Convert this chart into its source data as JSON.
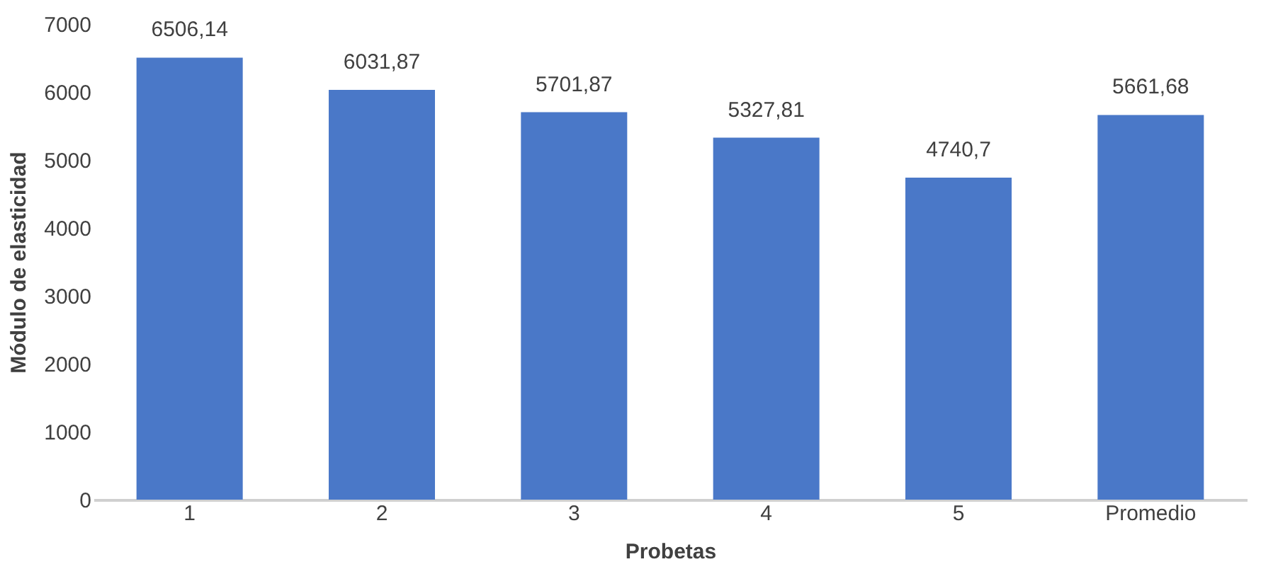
{
  "chart_data": {
    "type": "bar",
    "xlabel": "Probetas",
    "ylabel": "Módulo de elasticidad",
    "categories": [
      "1",
      "2",
      "3",
      "4",
      "5",
      "Promedio"
    ],
    "values": [
      6506.14,
      6031.87,
      5701.87,
      5327.81,
      4740.7,
      5661.68
    ],
    "value_labels": [
      "6506,14",
      "6031,87",
      "5701,87",
      "5327,81",
      "4740,7",
      "5661,68"
    ],
    "color": "#4a78c8",
    "ylim": [
      0,
      7000
    ],
    "yticks": [
      0,
      1000,
      2000,
      3000,
      4000,
      5000,
      6000,
      7000
    ],
    "grid": false
  }
}
